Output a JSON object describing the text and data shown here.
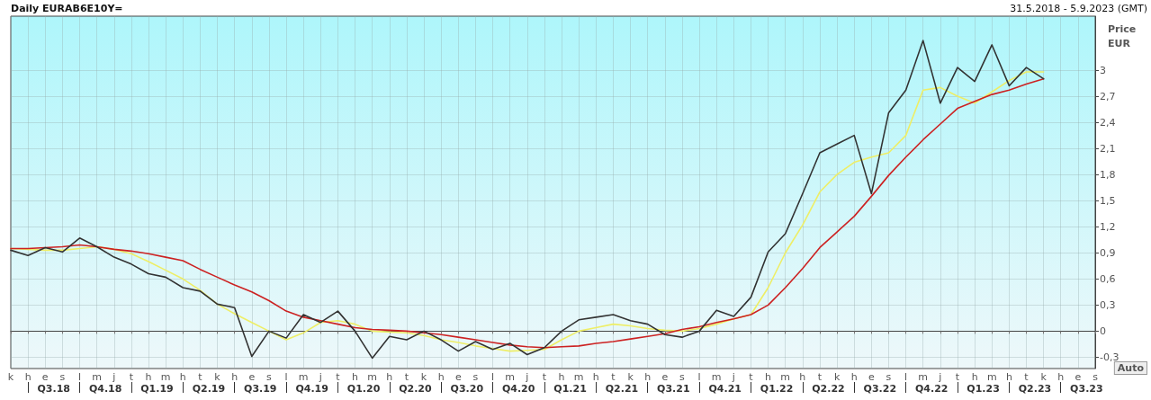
{
  "chart_data": {
    "type": "line",
    "title": "Daily EURAB6E10Y=",
    "subtitle": "31.5.2018 - 5.9.2023 (GMT)",
    "ylabel": "Price EUR",
    "annotations": [
      "Q3.18",
      "Q4.18",
      "Q1.19",
      "Q2.19",
      "Q3.19",
      "Q4.19",
      "Q1.20",
      "Q2.20",
      "Q3.20",
      "Q4.20",
      "Q1.21",
      "Q2.21",
      "Q3.21",
      "Q4.21",
      "Q1.22",
      "Q2.22",
      "Q3.22",
      "Q4.22",
      "Q1.23",
      "Q2.23",
      "Q3.23",
      "Auto"
    ],
    "categories": [
      "k",
      "h",
      "e",
      "s",
      "l",
      "m",
      "j",
      "t",
      "h",
      "m",
      "h",
      "t",
      "k",
      "h",
      "e",
      "s",
      "l",
      "m",
      "j",
      "t",
      "h",
      "m",
      "h",
      "t",
      "k",
      "h",
      "e",
      "s",
      "l",
      "m",
      "j",
      "t",
      "h",
      "m",
      "h",
      "t",
      "k",
      "h",
      "e",
      "s",
      "l",
      "m",
      "j",
      "t",
      "h",
      "m",
      "h",
      "t",
      "k",
      "h",
      "e",
      "s",
      "l",
      "m",
      "j",
      "t",
      "h",
      "m",
      "h",
      "t",
      "k",
      "h",
      "e",
      "s"
    ],
    "ylim": [
      -0.43,
      3.62
    ],
    "yticks": [
      {
        "value": -0.3,
        "label": "-0,3"
      },
      0,
      {
        "value": 0.3,
        "label": "0,3"
      },
      {
        "value": 0.6,
        "label": "0,6"
      },
      {
        "value": 0.9,
        "label": "0,9"
      },
      {
        "value": 1.2,
        "label": "1,2"
      },
      {
        "value": 1.5,
        "label": "1,5"
      },
      {
        "value": 1.8,
        "label": "1,8"
      },
      {
        "value": 2.1,
        "label": "2,1"
      },
      {
        "value": 2.4,
        "label": "2,4"
      },
      {
        "value": 2.7,
        "label": "2,7"
      },
      3
    ],
    "grid": true,
    "series": [
      {
        "color": "#333333",
        "values": [
          0.93,
          0.87,
          0.96,
          0.91,
          1.07,
          0.97,
          0.85,
          0.77,
          0.66,
          0.62,
          0.5,
          0.46,
          0.31,
          0.27,
          -0.29,
          0,
          -0.08,
          0.19,
          0.1,
          0.23,
          0,
          -0.31,
          -0.06,
          -0.1,
          0,
          -0.1,
          -0.23,
          -0.12,
          -0.21,
          -0.14,
          -0.27,
          -0.19,
          0,
          0.13,
          0.16,
          0.19,
          0.12,
          0.08,
          -0.04,
          -0.07,
          0,
          0.24,
          0.17,
          0.39,
          0.91,
          1.12,
          1.58,
          2.05,
          2.15,
          2.25,
          1.58,
          2.51,
          2.77,
          3.34,
          2.62,
          3.03,
          2.87,
          3.29,
          2.82,
          3.03,
          2.9,
          null,
          null,
          null
        ]
      },
      {
        "color": "#eeee66",
        "values": [
          0.95,
          0.94,
          0.93,
          0.93,
          0.95,
          0.97,
          0.94,
          0.89,
          0.8,
          0.7,
          0.6,
          0.47,
          0.31,
          0.2,
          0.1,
          0,
          -0.1,
          -0.02,
          0.1,
          0.12,
          0.08,
          0,
          -0.01,
          -0.02,
          -0.05,
          -0.1,
          -0.13,
          -0.17,
          -0.2,
          -0.23,
          -0.22,
          -0.21,
          -0.1,
          0,
          0.04,
          0.08,
          0.06,
          0.03,
          0.01,
          0,
          0.03,
          0.08,
          0.14,
          0.19,
          0.5,
          0.9,
          1.22,
          1.6,
          1.8,
          1.94,
          2,
          2.05,
          2.25,
          2.77,
          2.8,
          2.7,
          2.62,
          2.75,
          2.88,
          2.98,
          2.98,
          null,
          null,
          null
        ]
      },
      {
        "color": "#cc2222",
        "values": [
          0.95,
          0.95,
          0.96,
          0.97,
          0.99,
          0.97,
          0.94,
          0.92,
          0.89,
          0.85,
          0.81,
          0.71,
          0.62,
          0.53,
          0.45,
          0.35,
          0.23,
          0.16,
          0.12,
          0.08,
          0.04,
          0.02,
          0.01,
          0,
          -0.02,
          -0.04,
          -0.07,
          -0.1,
          -0.13,
          -0.16,
          -0.18,
          -0.19,
          -0.18,
          -0.17,
          -0.14,
          -0.12,
          -0.09,
          -0.06,
          -0.03,
          0.02,
          0.05,
          0.1,
          0.14,
          0.19,
          0.3,
          0.5,
          0.72,
          0.96,
          1.14,
          1.32,
          1.55,
          1.79,
          2,
          2.2,
          2.38,
          2.56,
          2.64,
          2.72,
          2.77,
          2.84,
          2.9,
          null,
          null,
          null
        ]
      }
    ]
  }
}
